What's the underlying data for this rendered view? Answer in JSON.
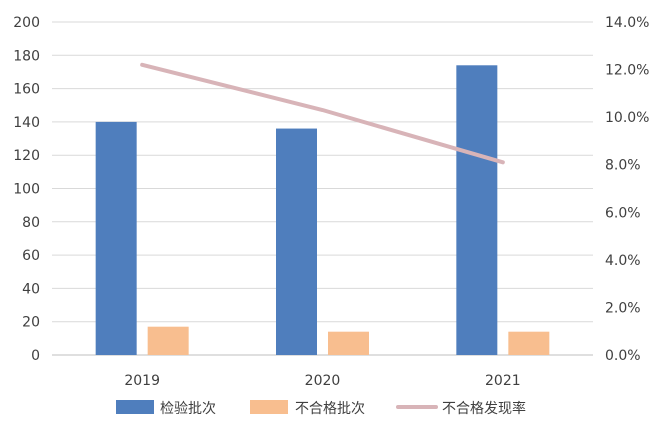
{
  "chart_data": {
    "type": "bar",
    "categories": [
      "2019",
      "2020",
      "2021"
    ],
    "series": [
      {
        "name": "检验批次",
        "type": "bar",
        "axis": "left",
        "color": "#4F7EBD",
        "values": [
          140,
          136,
          174
        ]
      },
      {
        "name": "不合格批次",
        "type": "bar",
        "axis": "left",
        "color": "#F8BE8F",
        "values": [
          17,
          14,
          14
        ]
      },
      {
        "name": "不合格发现率",
        "type": "line",
        "axis": "right",
        "color": "#D8B4B8",
        "values": [
          12.2,
          10.3,
          8.1
        ]
      }
    ],
    "y_left": {
      "min": 0,
      "max": 200,
      "step": 20,
      "tick_labels": [
        "0",
        "20",
        "40",
        "60",
        "80",
        "100",
        "120",
        "140",
        "160",
        "180",
        "200"
      ]
    },
    "y_right": {
      "min": 0,
      "max": 14,
      "step": 2,
      "tick_labels": [
        "0.0%",
        "2.0%",
        "4.0%",
        "6.0%",
        "8.0%",
        "10.0%",
        "12.0%",
        "14.0%"
      ]
    },
    "grid": true,
    "legend": "bottom"
  }
}
